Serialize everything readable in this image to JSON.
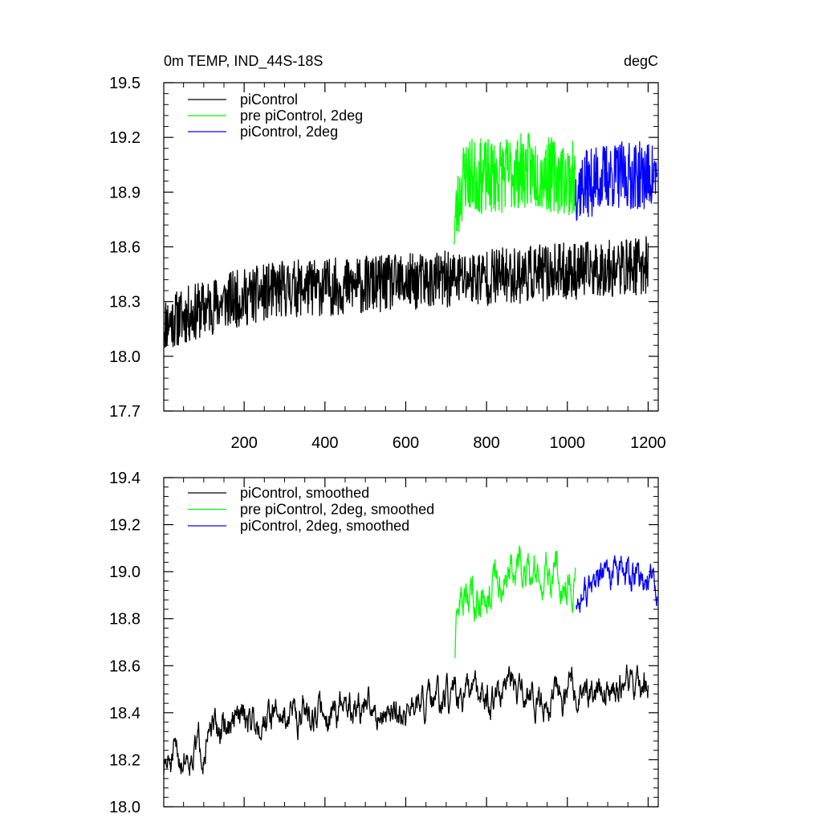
{
  "colors": {
    "background": "#ffffff",
    "axes": "#000000",
    "piControl": "#000000",
    "pre_piControl_2deg": "#00ff00",
    "piControl_2deg": "#0000ff"
  },
  "chart_data": [
    {
      "type": "line",
      "title_left": "0m TEMP, IND_44S-18S",
      "title_right": "degC",
      "xlabel": "",
      "ylabel": "",
      "xlim": [
        1,
        1225
      ],
      "ylim": [
        17.7,
        19.5
      ],
      "x_ticks": [
        200,
        400,
        600,
        800,
        1000,
        1200
      ],
      "x_tick_labels": [
        "200",
        "400",
        "600",
        "800",
        "1000",
        "1200"
      ],
      "y_ticks": [
        17.7,
        18.0,
        18.3,
        18.6,
        18.9,
        19.2,
        19.5
      ],
      "y_tick_labels": [
        "17.7",
        "18.0",
        "18.3",
        "18.6",
        "18.9",
        "19.2",
        "19.5"
      ],
      "grid": false,
      "legend_position": "top-left",
      "series": [
        {
          "name": "piControl",
          "color": "#000000",
          "x_range": [
            1,
            1200
          ],
          "base": [
            [
              1,
              18.18
            ],
            [
              150,
              18.3
            ],
            [
              300,
              18.37
            ],
            [
              500,
              18.39
            ],
            [
              700,
              18.42
            ],
            [
              900,
              18.45
            ],
            [
              1100,
              18.48
            ],
            [
              1200,
              18.5
            ]
          ],
          "amplitude": 0.32,
          "seed": 11
        },
        {
          "name": "pre piControl, 2deg",
          "color": "#00ff00",
          "x_range": [
            720,
            1020
          ],
          "base": [
            [
              720,
              18.72
            ],
            [
              745,
              19.0
            ],
            [
              800,
              18.98
            ],
            [
              900,
              19.02
            ],
            [
              1020,
              18.97
            ]
          ],
          "amplitude": 0.42,
          "seed": 23
        },
        {
          "name": "piControl, 2deg",
          "color": "#0000ff",
          "x_range": [
            1020,
            1222
          ],
          "base": [
            [
              1020,
              18.92
            ],
            [
              1100,
              18.99
            ],
            [
              1222,
              18.99
            ]
          ],
          "amplitude": 0.38,
          "seed": 37
        }
      ]
    },
    {
      "type": "line",
      "xlabel": "",
      "ylabel": "",
      "xlim": [
        1,
        1225
      ],
      "ylim": [
        18.0,
        19.4
      ],
      "x_ticks": [
        200,
        400,
        600,
        800,
        1000,
        1200
      ],
      "y_ticks": [
        18.0,
        18.2,
        18.4,
        18.6,
        18.8,
        19.0,
        19.2,
        19.4
      ],
      "y_tick_labels": [
        "18.0",
        "18.2",
        "18.4",
        "18.6",
        "18.8",
        "19.0",
        "19.2",
        "19.4"
      ],
      "grid": false,
      "legend_position": "top-left",
      "series": [
        {
          "name": "piControl, smoothed",
          "color": "#000000",
          "x_range": [
            1,
            1200
          ],
          "base": [
            [
              1,
              18.16
            ],
            [
              100,
              18.28
            ],
            [
              200,
              18.38
            ],
            [
              400,
              18.41
            ],
            [
              600,
              18.41
            ],
            [
              800,
              18.47
            ],
            [
              1000,
              18.48
            ],
            [
              1200,
              18.52
            ]
          ],
          "amplitude": 0.16,
          "seed": 51
        },
        {
          "name": "pre piControl, 2deg, smoothed",
          "color": "#00ff00",
          "x_range": [
            722,
            1020
          ],
          "base": [
            [
              722,
              18.66
            ],
            [
              735,
              18.88
            ],
            [
              800,
              18.95
            ],
            [
              900,
              19.0
            ],
            [
              1020,
              18.98
            ]
          ],
          "amplitude": 0.2,
          "seed": 63
        },
        {
          "name": "piControl, 2deg, smoothed",
          "color": "#0000ff",
          "x_range": [
            1022,
            1222
          ],
          "base": [
            [
              1022,
              18.88
            ],
            [
              1100,
              18.98
            ],
            [
              1222,
              18.97
            ]
          ],
          "amplitude": 0.17,
          "seed": 77
        }
      ]
    }
  ]
}
